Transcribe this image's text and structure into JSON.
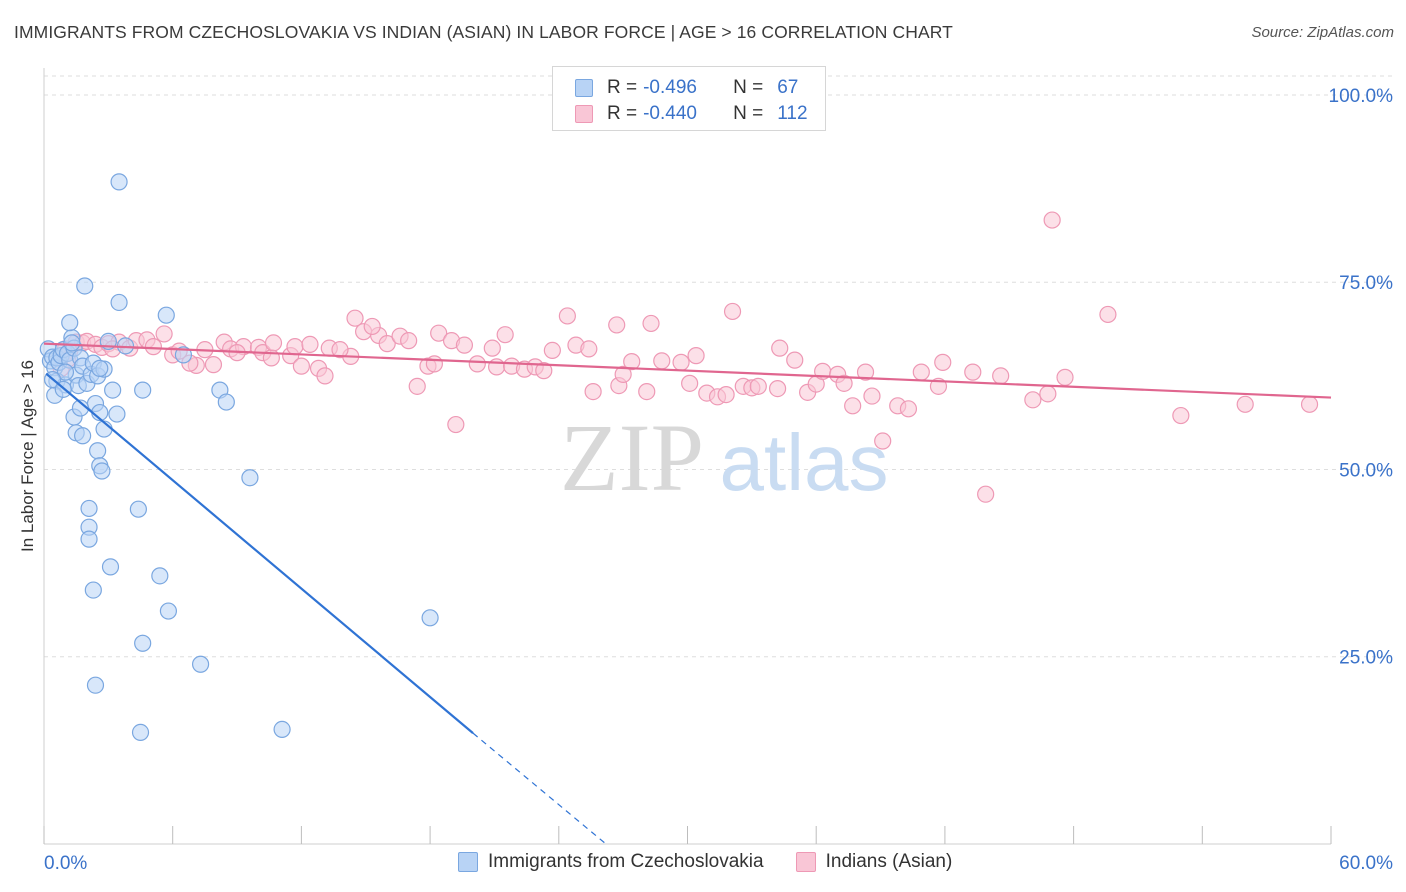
{
  "title": "IMMIGRANTS FROM CZECHOSLOVAKIA VS INDIAN (ASIAN) IN LABOR FORCE | AGE > 16 CORRELATION CHART",
  "source": "Source: ZipAtlas.com",
  "watermark": {
    "zip": "ZIP",
    "atlas": "atlas"
  },
  "legend": {
    "r_label": "R =",
    "n_label": "N =",
    "rows": [
      {
        "r": "-0.496",
        "n": "67",
        "fill": "#b8d3f5",
        "stroke": "#7aa7e0"
      },
      {
        "r": "-0.440",
        "n": "112",
        "fill": "#f9c6d6",
        "stroke": "#ee99b5"
      }
    ]
  },
  "chart_data": {
    "type": "scatter",
    "title": "IMMIGRANTS FROM CZECHOSLOVAKIA VS INDIAN (ASIAN) IN LABOR FORCE | AGE > 16 CORRELATION CHART",
    "xlabel": "",
    "ylabel": "In Labor Force | Age > 16",
    "xlim": [
      0,
      60
    ],
    "ylim": [
      0,
      102
    ],
    "x_tick_labels": [
      "0.0%",
      "60.0%"
    ],
    "y_tick_values": [
      25,
      50,
      75,
      100
    ],
    "y_tick_labels": [
      "25.0%",
      "50.0%",
      "75.0%",
      "100.0%"
    ],
    "grid": true,
    "legend_position": "bottom",
    "series": [
      {
        "name": "Immigrants from Czechoslovakia",
        "color": "#7aa7e0",
        "fill": "#b8d3f5",
        "line_color": "#2f73d4",
        "trend": {
          "x": [
            0.1,
            20.0
          ],
          "y": [
            62.8,
            14.8
          ]
        },
        "trend_extension": {
          "x": [
            20.0,
            26.2
          ],
          "y": [
            14.8,
            0
          ]
        },
        "points": [
          [
            0.2,
            66.1
          ],
          [
            0.3,
            64.5
          ],
          [
            0.4,
            65.0
          ],
          [
            0.5,
            63.6
          ],
          [
            0.6,
            64.9
          ],
          [
            0.7,
            64.3
          ],
          [
            0.8,
            65.2
          ],
          [
            0.9,
            66.0
          ],
          [
            0.6,
            61.8
          ],
          [
            1.0,
            61.3
          ],
          [
            1.1,
            65.5
          ],
          [
            1.2,
            64.6
          ],
          [
            1.3,
            67.6
          ],
          [
            1.4,
            66.2
          ],
          [
            1.5,
            62.6
          ],
          [
            1.6,
            61.2
          ],
          [
            1.7,
            64.9
          ],
          [
            1.8,
            63.8
          ],
          [
            2.0,
            61.5
          ],
          [
            2.2,
            62.7
          ],
          [
            0.5,
            59.9
          ],
          [
            1.2,
            69.6
          ],
          [
            1.9,
            74.5
          ],
          [
            3.5,
            88.4
          ],
          [
            3.5,
            72.3
          ],
          [
            5.7,
            70.6
          ],
          [
            2.4,
            58.8
          ],
          [
            2.3,
            64.2
          ],
          [
            2.5,
            62.5
          ],
          [
            2.8,
            63.4
          ],
          [
            3.0,
            67.1
          ],
          [
            3.2,
            60.6
          ],
          [
            2.6,
            57.6
          ],
          [
            1.4,
            57.0
          ],
          [
            1.5,
            54.9
          ],
          [
            1.8,
            54.5
          ],
          [
            2.5,
            52.5
          ],
          [
            2.6,
            50.5
          ],
          [
            2.7,
            49.8
          ],
          [
            2.8,
            55.4
          ],
          [
            3.4,
            57.4
          ],
          [
            4.6,
            60.6
          ],
          [
            4.4,
            44.7
          ],
          [
            2.1,
            44.8
          ],
          [
            2.1,
            42.3
          ],
          [
            2.1,
            40.7
          ],
          [
            3.1,
            37.0
          ],
          [
            5.4,
            35.8
          ],
          [
            2.3,
            33.9
          ],
          [
            5.8,
            31.1
          ],
          [
            4.6,
            26.8
          ],
          [
            7.3,
            24.0
          ],
          [
            2.4,
            21.2
          ],
          [
            4.5,
            14.9
          ],
          [
            11.1,
            15.3
          ],
          [
            8.2,
            60.6
          ],
          [
            8.5,
            59.0
          ],
          [
            9.6,
            48.9
          ],
          [
            18.0,
            30.2
          ],
          [
            6.5,
            65.3
          ],
          [
            2.6,
            63.5
          ],
          [
            1.0,
            63.0
          ],
          [
            0.4,
            62.0
          ],
          [
            3.8,
            66.5
          ],
          [
            0.9,
            60.7
          ],
          [
            1.7,
            58.2
          ],
          [
            1.3,
            66.9
          ]
        ]
      },
      {
        "name": "Indians (Asian)",
        "color": "#ee99b5",
        "fill": "#f9c6d6",
        "line_color": "#e0668f",
        "trend": {
          "x": [
            0.0,
            60.0
          ],
          "y": [
            66.8,
            59.6
          ]
        },
        "points": [
          [
            0.8,
            63.5
          ],
          [
            1.0,
            66.1
          ],
          [
            1.2,
            65.8
          ],
          [
            1.5,
            67.0
          ],
          [
            1.8,
            66.9
          ],
          [
            2.0,
            67.1
          ],
          [
            2.4,
            66.7
          ],
          [
            2.7,
            66.3
          ],
          [
            3.0,
            66.8
          ],
          [
            3.5,
            67.0
          ],
          [
            4.0,
            66.2
          ],
          [
            4.3,
            67.2
          ],
          [
            4.8,
            67.3
          ],
          [
            5.1,
            66.4
          ],
          [
            5.6,
            68.1
          ],
          [
            6.0,
            65.3
          ],
          [
            6.3,
            65.8
          ],
          [
            7.1,
            63.9
          ],
          [
            7.5,
            66.0
          ],
          [
            7.9,
            64.0
          ],
          [
            8.4,
            67.0
          ],
          [
            8.7,
            66.1
          ],
          [
            9.3,
            66.4
          ],
          [
            10.0,
            66.3
          ],
          [
            10.2,
            65.6
          ],
          [
            10.6,
            64.9
          ],
          [
            10.7,
            66.9
          ],
          [
            11.5,
            65.2
          ],
          [
            11.7,
            66.4
          ],
          [
            12.0,
            63.8
          ],
          [
            12.4,
            66.7
          ],
          [
            12.8,
            63.5
          ],
          [
            13.1,
            62.5
          ],
          [
            13.3,
            66.2
          ],
          [
            14.3,
            65.1
          ],
          [
            14.5,
            70.2
          ],
          [
            14.9,
            68.4
          ],
          [
            15.6,
            67.9
          ],
          [
            16.0,
            66.8
          ],
          [
            16.6,
            67.8
          ],
          [
            17.0,
            67.2
          ],
          [
            17.4,
            61.1
          ],
          [
            17.9,
            63.8
          ],
          [
            18.2,
            64.1
          ],
          [
            18.4,
            68.2
          ],
          [
            19.0,
            67.2
          ],
          [
            19.2,
            56.0
          ],
          [
            19.6,
            66.6
          ],
          [
            20.2,
            64.1
          ],
          [
            20.9,
            66.2
          ],
          [
            21.1,
            63.7
          ],
          [
            21.5,
            68.0
          ],
          [
            21.8,
            63.8
          ],
          [
            22.4,
            63.4
          ],
          [
            22.9,
            63.7
          ],
          [
            23.3,
            63.2
          ],
          [
            23.7,
            65.9
          ],
          [
            24.4,
            70.5
          ],
          [
            24.8,
            66.6
          ],
          [
            25.4,
            66.1
          ],
          [
            25.6,
            60.4
          ],
          [
            26.7,
            69.3
          ],
          [
            26.8,
            61.2
          ],
          [
            27.0,
            62.7
          ],
          [
            27.4,
            64.4
          ],
          [
            28.1,
            60.4
          ],
          [
            28.3,
            69.5
          ],
          [
            28.8,
            64.5
          ],
          [
            29.7,
            64.3
          ],
          [
            30.1,
            61.5
          ],
          [
            30.4,
            65.2
          ],
          [
            30.9,
            60.2
          ],
          [
            31.4,
            59.7
          ],
          [
            31.8,
            60.0
          ],
          [
            32.1,
            71.1
          ],
          [
            32.6,
            61.1
          ],
          [
            33.0,
            60.9
          ],
          [
            33.3,
            61.1
          ],
          [
            34.2,
            60.8
          ],
          [
            34.3,
            66.2
          ],
          [
            35.0,
            64.6
          ],
          [
            35.6,
            60.3
          ],
          [
            36.0,
            61.4
          ],
          [
            36.3,
            63.1
          ],
          [
            37.0,
            62.7
          ],
          [
            37.3,
            61.5
          ],
          [
            37.7,
            58.5
          ],
          [
            38.3,
            63.0
          ],
          [
            38.6,
            59.8
          ],
          [
            39.1,
            53.8
          ],
          [
            39.8,
            58.5
          ],
          [
            40.3,
            58.1
          ],
          [
            40.9,
            63.0
          ],
          [
            41.7,
            61.1
          ],
          [
            41.9,
            64.3
          ],
          [
            43.3,
            63.0
          ],
          [
            43.9,
            46.7
          ],
          [
            44.6,
            62.5
          ],
          [
            46.1,
            59.3
          ],
          [
            46.8,
            60.1
          ],
          [
            47.6,
            62.3
          ],
          [
            47.0,
            83.3
          ],
          [
            49.6,
            70.7
          ],
          [
            53.0,
            57.2
          ],
          [
            56.0,
            58.7
          ],
          [
            59.0,
            58.7
          ],
          [
            1.1,
            64.7
          ],
          [
            3.2,
            66.1
          ],
          [
            6.8,
            64.2
          ],
          [
            9.0,
            65.6
          ],
          [
            13.8,
            66.0
          ],
          [
            15.3,
            69.1
          ]
        ]
      }
    ]
  },
  "bottom_legend": [
    {
      "label": "Immigrants from Czechoslovakia",
      "fill": "#b8d3f5",
      "stroke": "#7aa7e0"
    },
    {
      "label": "Indians (Asian)",
      "fill": "#f9c6d6",
      "stroke": "#ee99b5"
    }
  ]
}
